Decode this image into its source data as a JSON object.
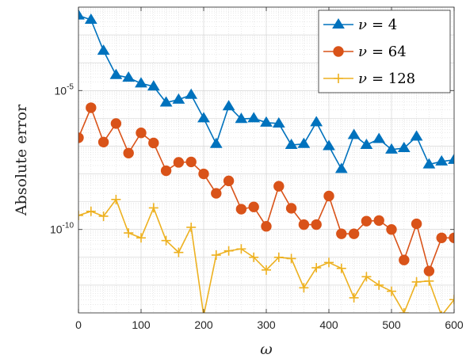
{
  "chart_data": {
    "type": "line",
    "title": "",
    "xlabel": "ω",
    "ylabel": "Absolute error",
    "xlim": [
      0,
      600
    ],
    "ylim": [
      1e-13,
      0.01
    ],
    "yscale": "log",
    "grid": true,
    "legend_position": "top-right",
    "x_ticks": [
      0,
      100,
      200,
      300,
      400,
      500,
      600
    ],
    "x_tick_labels": [
      "0",
      "100",
      "200",
      "300",
      "400",
      "500",
      "600"
    ],
    "y_ticks": [
      1e-10,
      1e-05
    ],
    "y_tick_labels": [
      {
        "base": "10",
        "exp": "-10"
      },
      {
        "base": "10",
        "exp": "-5"
      }
    ],
    "x": [
      0,
      20,
      40,
      60,
      80,
      100,
      120,
      140,
      160,
      180,
      200,
      220,
      240,
      260,
      280,
      300,
      320,
      340,
      360,
      380,
      400,
      420,
      440,
      460,
      480,
      500,
      520,
      540,
      560,
      580,
      600
    ],
    "series": [
      {
        "name": "ν = 4",
        "name_symbol": "ν",
        "name_value": "= 4",
        "color": "#0072BD",
        "marker": "triangle",
        "values": [
          0.005,
          0.0035,
          0.00027,
          3.6e-05,
          2.9e-05,
          1.8e-05,
          1.4e-05,
          3.7e-06,
          4.7e-06,
          7e-06,
          1e-06,
          1.2e-07,
          2.7e-06,
          9.5e-07,
          1e-06,
          7e-07,
          6.5e-07,
          1.1e-07,
          1.2e-07,
          7.2e-07,
          1e-07,
          1.5e-08,
          2.5e-07,
          1.1e-07,
          1.8e-07,
          7.5e-08,
          8.5e-08,
          2.2e-07,
          2.2e-08,
          2.8e-08,
          3.2e-08
        ]
      },
      {
        "name": "ν = 64",
        "name_symbol": "ν",
        "name_value": "= 64",
        "color": "#D95319",
        "marker": "circle",
        "values": [
          2e-07,
          2.4e-06,
          1.4e-07,
          6.5e-07,
          5.6e-08,
          3e-07,
          1.3e-07,
          1.3e-08,
          2.6e-08,
          2.7e-08,
          1e-08,
          2e-09,
          5.6e-09,
          5.4e-10,
          6.5e-10,
          1.3e-10,
          3.6e-09,
          5.8e-10,
          1.5e-10,
          1.5e-10,
          1.6e-09,
          7e-11,
          7e-11,
          2e-10,
          2.1e-10,
          1e-10,
          8e-12,
          1.6e-10,
          3.2e-12,
          5e-11,
          5e-11
        ]
      },
      {
        "name": "ν = 128",
        "name_symbol": "ν",
        "name_value": "= 128",
        "color": "#EDB120",
        "marker": "plus",
        "values": [
          3.2e-10,
          4.5e-10,
          3e-10,
          1.2e-09,
          7.5e-11,
          5e-11,
          6e-10,
          4e-11,
          1.5e-11,
          1.2e-10,
          8e-14,
          1.2e-11,
          1.7e-11,
          2e-11,
          1e-11,
          3.5e-12,
          1e-11,
          9e-12,
          8e-13,
          4.2e-12,
          6.5e-12,
          4e-12,
          3.5e-13,
          2e-12,
          1e-12,
          6e-13,
          1e-13,
          1.3e-12,
          1.4e-12,
          8e-14,
          3e-13
        ]
      }
    ]
  }
}
